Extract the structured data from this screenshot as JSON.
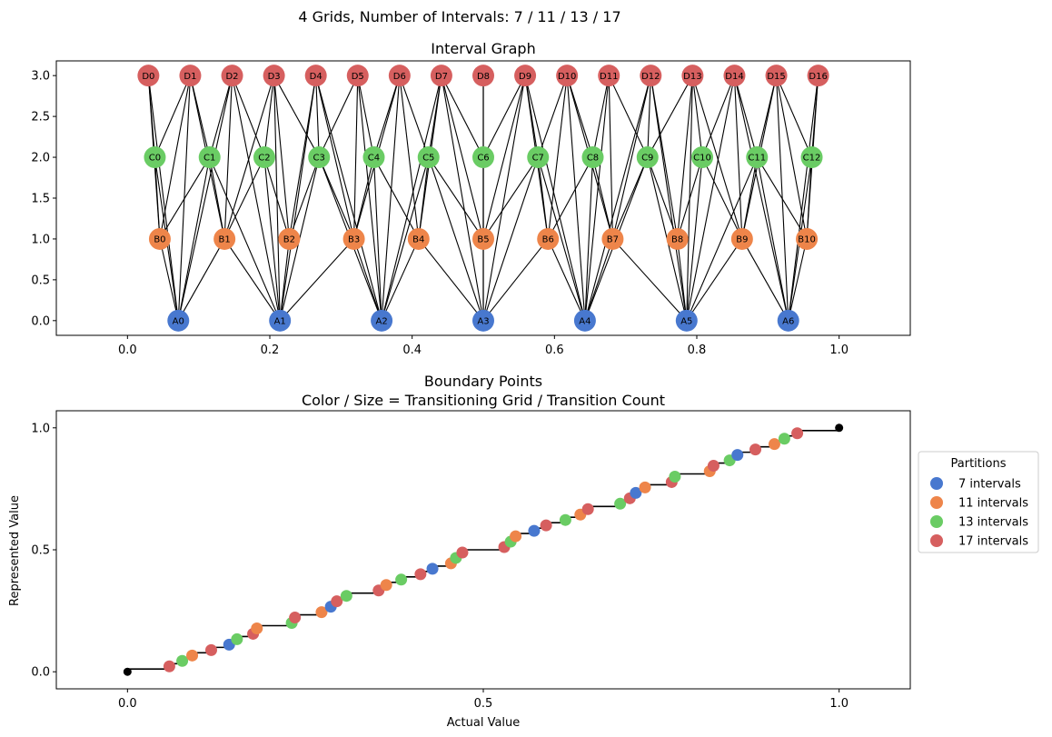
{
  "suptitle": "4 Grids, Number of Intervals: 7 / 11 / 13 / 17",
  "chart_data": [
    {
      "type": "network",
      "title": "Interval Graph",
      "xlim": [
        -0.1,
        1.1
      ],
      "ylim": [
        -0.18,
        3.18
      ],
      "x_ticks": [
        "0.0",
        "0.2",
        "0.4",
        "0.6",
        "0.8",
        "1.0"
      ],
      "y_ticks": [
        "0.0",
        "0.5",
        "1.0",
        "1.5",
        "2.0",
        "2.5",
        "3.0"
      ],
      "grids": [
        {
          "prefix": "A",
          "count": 7,
          "y": 0,
          "color": "#4878cf"
        },
        {
          "prefix": "B",
          "count": 11,
          "y": 1,
          "color": "#ee854a"
        },
        {
          "prefix": "C",
          "count": 13,
          "y": 2,
          "color": "#6acc64"
        },
        {
          "prefix": "D",
          "count": 17,
          "y": 3,
          "color": "#d65f5f"
        }
      ]
    },
    {
      "type": "scatter",
      "title": "Boundary Points",
      "subtitle": "Color / Size = Transitioning Grid / Transition Count",
      "xlabel": "Actual Value",
      "ylabel": "Represented Value",
      "xlim": [
        -0.1,
        1.1
      ],
      "ylim": [
        -0.07,
        1.07
      ],
      "x_ticks": [
        "0.0",
        "0.5",
        "1.0"
      ],
      "y_ticks": [
        "0.0",
        "0.5",
        "1.0"
      ],
      "endpoints": [
        [
          0,
          0
        ],
        [
          1,
          1
        ]
      ],
      "legend": {
        "title": "Partitions",
        "position": "right",
        "entries": [
          {
            "label": "7 intervals",
            "color": "#4878cf"
          },
          {
            "label": "11 intervals",
            "color": "#ee854a"
          },
          {
            "label": "13 intervals",
            "color": "#6acc64"
          },
          {
            "label": "17 intervals",
            "color": "#d65f5f"
          }
        ]
      }
    }
  ]
}
